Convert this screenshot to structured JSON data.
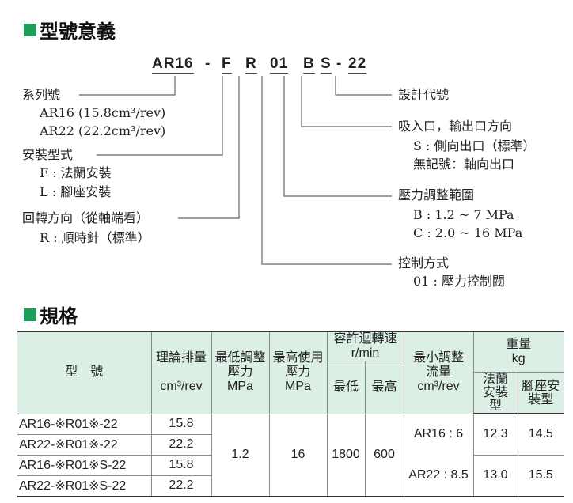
{
  "section1": {
    "title": "型號意義",
    "icon": "green-square"
  },
  "code": {
    "series": "AR16",
    "dash1": "-",
    "mount": "F",
    "rotation": "R",
    "control": "01",
    "pressure": "B",
    "port": "S",
    "dash2": "-",
    "design": "22"
  },
  "left_labels": {
    "series_title": "系列號",
    "series_1": "AR16 (15.8cm³/rev)",
    "series_2": "AR22 (22.2cm³/rev)",
    "mount_title": "安裝型式",
    "mount_1": "F : 法蘭安裝",
    "mount_2": "L : 腳座安裝",
    "rotation_title": "回轉方向（從軸端看）",
    "rotation_1": "R : 順時針（標準）"
  },
  "right_labels": {
    "design_title": "設計代號",
    "port_title": "吸入口，輸出口方向",
    "port_1": "S : 側向出口（標準）",
    "port_2": "無記號：軸向出口",
    "pressure_title": "壓力調整範圍",
    "pressure_1": "B : 1.2 ~ 7 MPa",
    "pressure_2": "C : 2.0 ~ 16 MPa",
    "control_title": "控制方式",
    "control_1": "01 : 壓力控制閥"
  },
  "section2": {
    "title": "規格",
    "icon": "green-square"
  },
  "table": {
    "headers": {
      "model": "型　號",
      "disp": "理論排量",
      "disp_unit": "cm³/rev",
      "minp": "最低調整壓力",
      "minp_unit": "MPa",
      "maxp": "最高使用壓力",
      "maxp_unit": "MPa",
      "speed": "容許迴轉速",
      "speed_unit": "r/min",
      "speed_min": "最低",
      "speed_max": "最高",
      "flow": "最小調整流量",
      "flow_unit": "cm³/rev",
      "weight": "重量",
      "weight_unit": "kg",
      "w_flange": "法蘭安裝型",
      "w_foot": "腳座安裝型"
    },
    "rows": [
      {
        "model": "AR16-※R01※-22",
        "disp": "15.8"
      },
      {
        "model": "AR22-※R01※-22",
        "disp": "22.2"
      },
      {
        "model": "AR16-※R01※S-22",
        "disp": "15.8"
      },
      {
        "model": "AR22-※R01※S-22",
        "disp": "22.2"
      }
    ],
    "min_pressure": "1.2",
    "max_pressure": "16",
    "speed_min": "1800",
    "speed_max": "600",
    "flow_1": "AR16 : 6",
    "flow_2": "AR22 : 8.5",
    "weight_a_flange": "12.3",
    "weight_a_foot": "14.5",
    "weight_b_flange": "13.0",
    "weight_b_foot": "15.5"
  }
}
